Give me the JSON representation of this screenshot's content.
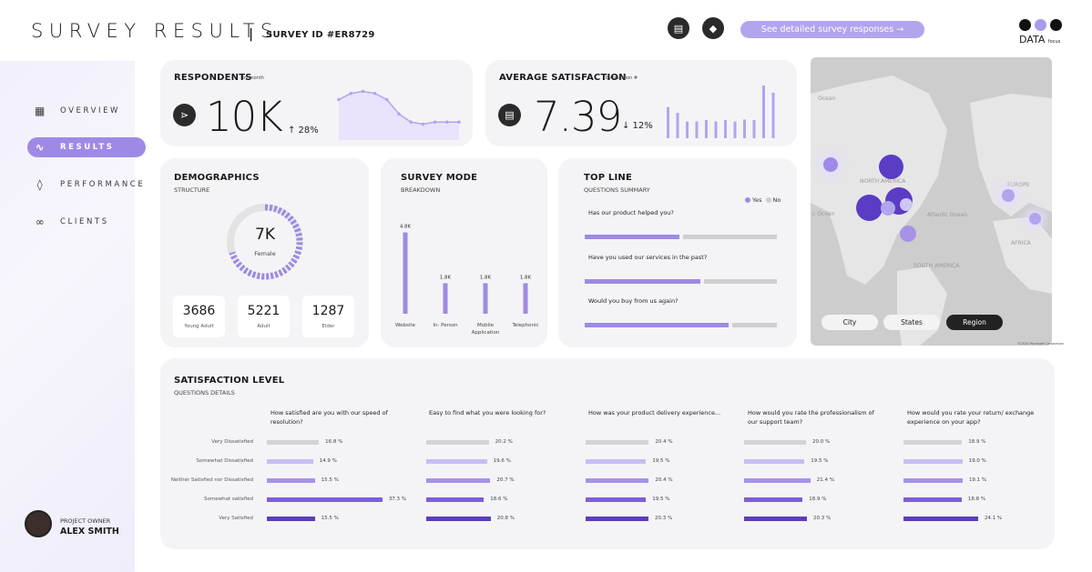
{
  "header": {
    "title": "SURVEY RESULTS",
    "separator": "|",
    "survey_id": "SURVEY ID #ER8729",
    "message_icon": "message-icon",
    "bell_icon": "bell-icon",
    "cta_label": "See detailed survey responses →",
    "logo_text": "DATA",
    "logo_sub": "focus"
  },
  "colors": {
    "accent": "#9e8ae6",
    "accent_light": "#b3a4ee",
    "bar_grey": "#cfcfcf",
    "level_colors": [
      "#d3d3d3",
      "#c8bdf3",
      "#a792ea",
      "#7c5fd6",
      "#5c3fb7"
    ]
  },
  "sidebar": {
    "items": [
      {
        "label": "OVERVIEW",
        "icon": "grid-icon"
      },
      {
        "label": "RESULTS",
        "icon": "pulse-icon"
      },
      {
        "label": "PERFORMANCE",
        "icon": "tag-icon"
      },
      {
        "label": "CLIENTS",
        "icon": "link-icon"
      }
    ],
    "active": "RESULTS",
    "owner_role": "PROJECT OWNER",
    "owner_name": "ALEX SMITH"
  },
  "respondents": {
    "title": "RESPONDENTS",
    "subtitle": "by month",
    "icon": "network-icon",
    "value": "10K",
    "delta": "↑ 28%",
    "sparkline": [
      18,
      21,
      22,
      21,
      18,
      11,
      7,
      6,
      7,
      7,
      7
    ]
  },
  "satisfaction": {
    "title": "AVERAGE SATISFACTION",
    "subtitle": "by question #",
    "icon": "clipboard-icon",
    "value": "7.39",
    "delta": "↓ 12%",
    "bars": [
      6.5,
      5.3,
      3.5,
      3.5,
      3.8,
      3.5,
      3.8,
      3.5,
      3.9,
      3.8,
      11,
      9.5
    ]
  },
  "demographics": {
    "title": "DEMOGRAPHICS",
    "subtitle": "STRUCTURE",
    "center_value": "7K",
    "center_label": "Female",
    "boxes": [
      {
        "value": "3686",
        "label": "Young Adult"
      },
      {
        "value": "5221",
        "label": "Adult"
      },
      {
        "value": "1287",
        "label": "Elder"
      }
    ]
  },
  "survey_mode": {
    "title": "SURVEY MODE",
    "subtitle": "BREAKDOWN",
    "chart_data": {
      "type": "bar",
      "categories": [
        "Website",
        "In- Person",
        "Mobile Application",
        "Telephonic"
      ],
      "values": [
        4.8,
        1.8,
        1.8,
        1.8
      ],
      "value_labels": [
        "4.8K",
        "1.8K",
        "1.8K",
        "1.8K"
      ]
    }
  },
  "top_line": {
    "title": "TOP LINE",
    "subtitle": "QUESTIONS SUMMARY",
    "legend_yes": "Yes",
    "legend_no": "No",
    "questions": [
      {
        "text": "Has our product helped you?",
        "yes": 50
      },
      {
        "text": "Have you used our services in the past?",
        "yes": 61
      },
      {
        "text": "Would you buy from us again?",
        "yes": 76
      }
    ]
  },
  "map": {
    "labels": [
      "Ocean",
      "NORTH AMERICA",
      "Atlantic Ocean",
      "EUROPE",
      "AFRICA",
      "SOUTH AMERICA",
      "c Ocean"
    ],
    "buttons": [
      "City",
      "States",
      "Region"
    ],
    "selected": "Region",
    "attribution": "©2024 Microsoft Corporation"
  },
  "satisfaction_level": {
    "title": "SATISFACTION LEVEL",
    "subtitle": "QUESTIONS DETAILS",
    "levels": [
      "Very Dissatisfied",
      "Somewhat Dissatisfied",
      "Neither Satisfied nor Dissatisfied",
      "Somewhat satisfied",
      "Very Satisfied"
    ],
    "questions": [
      {
        "text": "How satisfied are you with our speed of resolution?",
        "values": [
          16.8,
          14.9,
          15.5,
          37.3,
          15.5
        ],
        "labels": [
          "16.8 %",
          "14.9 %",
          "15.5 %",
          "37.3 %",
          "15.5 %"
        ]
      },
      {
        "text": "Easy to find what you were looking for?",
        "values": [
          20.2,
          19.6,
          20.7,
          18.6,
          20.8
        ],
        "labels": [
          "20.2 %",
          "19.6 %",
          "20.7 %",
          "18.6 %",
          "20.8 %"
        ]
      },
      {
        "text": "How was your product delivery experience...",
        "values": [
          20.4,
          19.5,
          20.4,
          19.5,
          20.3
        ],
        "labels": [
          "20.4 %",
          "19.5 %",
          "20.4 %",
          "19.5 %",
          "20.3 %"
        ]
      },
      {
        "text": "How would you rate the professionalism of our support team?",
        "values": [
          20.0,
          19.5,
          21.4,
          18.9,
          20.3
        ],
        "labels": [
          "20.0 %",
          "19.5 %",
          "21.4 %",
          "18.9 %",
          "20.3 %"
        ]
      },
      {
        "text": "How would you rate your return/ exchange experience on your app?",
        "values": [
          18.9,
          19.0,
          19.1,
          18.8,
          24.1
        ],
        "labels": [
          "18.9 %",
          "19.0 %",
          "19.1 %",
          "18.8 %",
          "24.1 %"
        ]
      }
    ]
  }
}
